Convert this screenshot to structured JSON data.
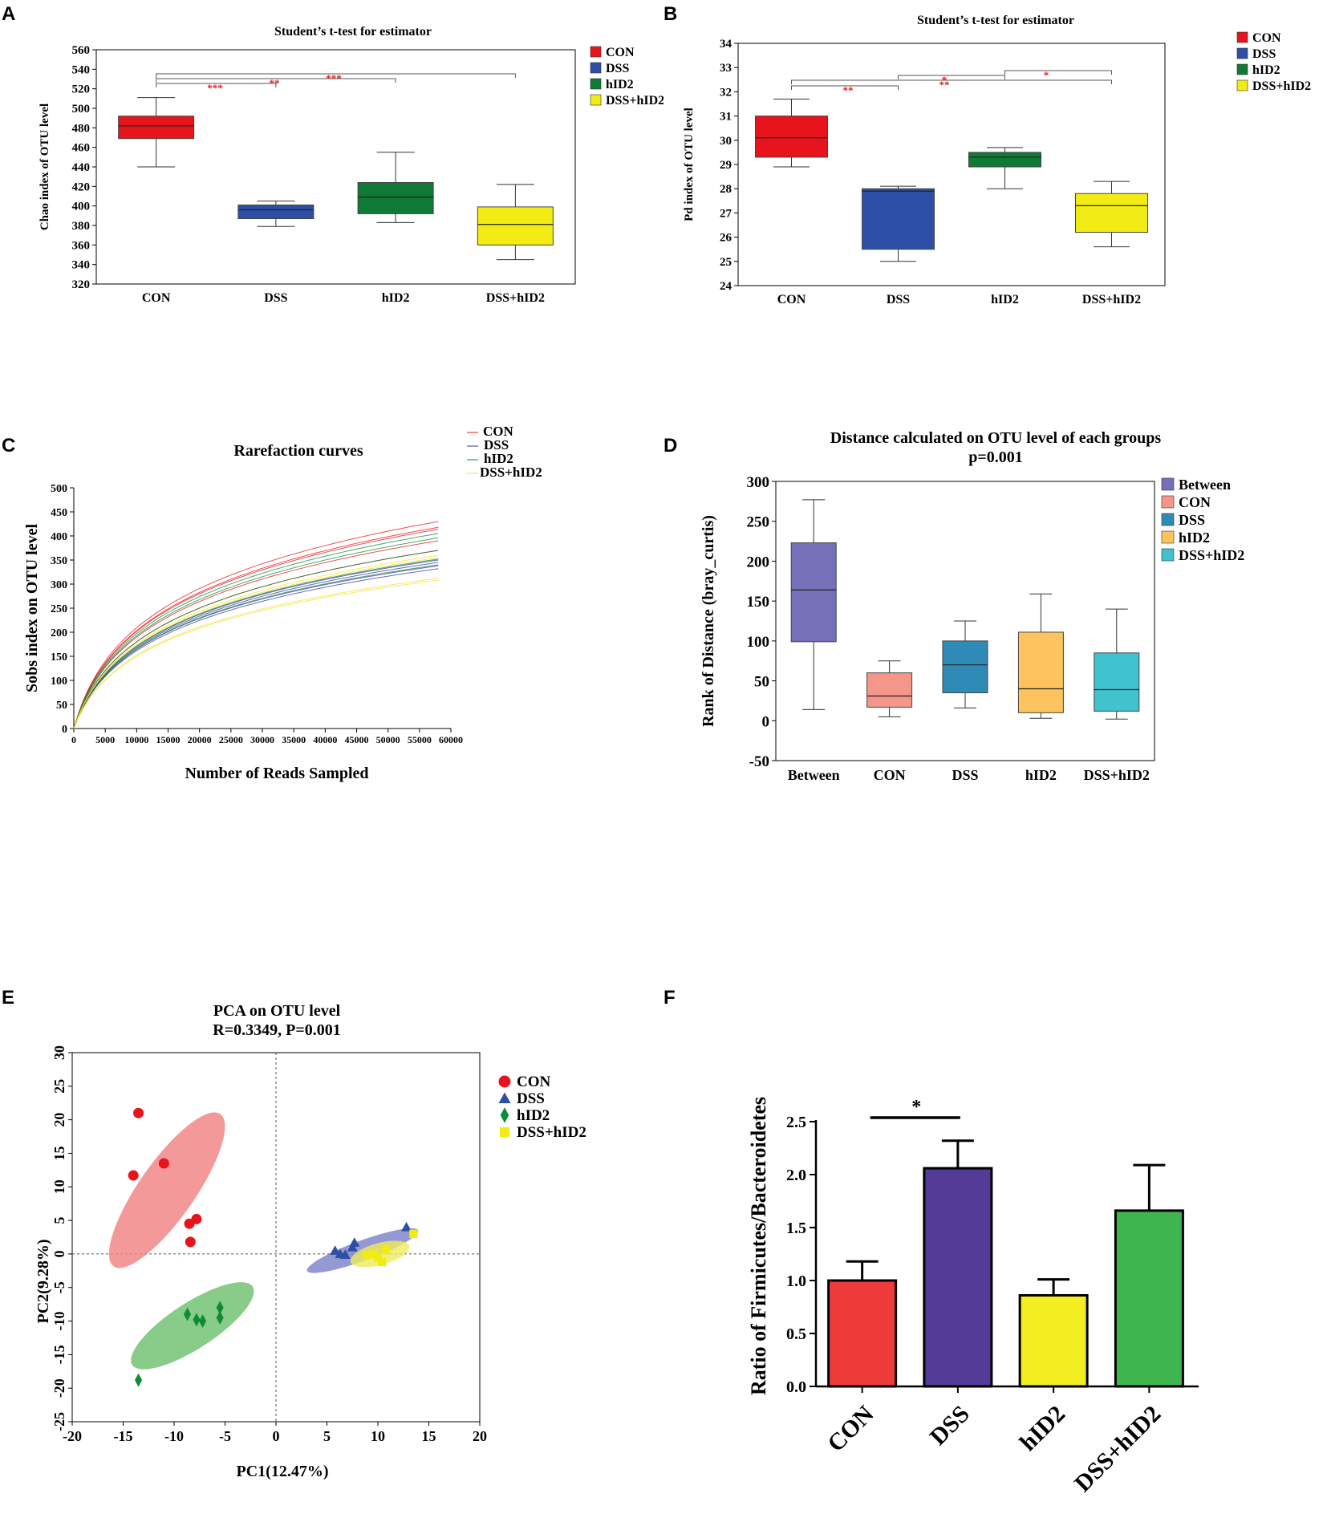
{
  "panel_labels": {
    "a": "A",
    "b": "B",
    "c": "C",
    "d": "D",
    "e": "E",
    "f": "F"
  },
  "colors": {
    "con": "#e8141c",
    "dss": "#2d4fa6",
    "hid2": "#0f7a35",
    "dsshid2": "#f2ec14",
    "sig": "#e8141c"
  },
  "chart_data": [
    {
      "id": "A",
      "type": "box",
      "title": "Student’s t-test for estimator",
      "ylabel": "Chao index of OTU level",
      "ylim": [
        320,
        560
      ],
      "yticks": [
        320,
        340,
        360,
        380,
        400,
        420,
        440,
        460,
        480,
        500,
        520,
        540,
        560
      ],
      "categories": [
        "CON",
        "DSS",
        "hID2",
        "DSS+hID2"
      ],
      "legend": [
        "CON",
        "DSS",
        "hID2",
        "DSS+hID2"
      ],
      "boxes": [
        {
          "min": 440,
          "q1": 469,
          "median": 482,
          "q3": 492,
          "max": 511,
          "color": "#e8141c"
        },
        {
          "min": 379,
          "q1": 387,
          "median": 396,
          "q3": 401,
          "max": 405,
          "color": "#2d4fa6"
        },
        {
          "min": 383,
          "q1": 392,
          "median": 409,
          "q3": 424,
          "max": 455,
          "color": "#0f7a35"
        },
        {
          "min": 345,
          "q1": 360,
          "median": 381,
          "q3": 399,
          "max": 422,
          "color": "#f2ec14"
        }
      ],
      "significance": [
        {
          "from": 0,
          "to": 1,
          "label": "***",
          "level": 0
        },
        {
          "from": 0,
          "to": 2,
          "label": "**",
          "level": 1
        },
        {
          "from": 0,
          "to": 3,
          "label": "***",
          "level": 2
        }
      ]
    },
    {
      "id": "B",
      "type": "box",
      "title": "Student’s t-test for estimator",
      "ylabel": "Pd index of OTU level",
      "ylim": [
        24,
        34
      ],
      "yticks": [
        24,
        25,
        26,
        27,
        28,
        29,
        30,
        31,
        32,
        33,
        34
      ],
      "categories": [
        "CON",
        "DSS",
        "hID2",
        "DSS+hID2"
      ],
      "legend": [
        "CON",
        "DSS",
        "hID2",
        "DSS+hID2"
      ],
      "boxes": [
        {
          "min": 28.9,
          "q1": 29.3,
          "median": 30.1,
          "q3": 31.0,
          "max": 31.7,
          "color": "#e8141c"
        },
        {
          "min": 25.0,
          "q1": 25.5,
          "median": 27.9,
          "q3": 28.0,
          "max": 28.1,
          "color": "#2d4fa6"
        },
        {
          "min": 28.0,
          "q1": 28.9,
          "median": 29.3,
          "q3": 29.5,
          "max": 29.7,
          "color": "#0f7a35"
        },
        {
          "min": 25.6,
          "q1": 26.2,
          "median": 27.3,
          "q3": 27.8,
          "max": 28.3,
          "color": "#f2ec14"
        }
      ],
      "significance": [
        {
          "from": 0,
          "to": 1,
          "label": "**",
          "level": 0
        },
        {
          "from": 0,
          "to": 3,
          "label": "**",
          "level": 1
        },
        {
          "from": 1,
          "to": 2,
          "label": "*",
          "level": 2
        },
        {
          "from": 2,
          "to": 3,
          "label": "*",
          "level": 3
        }
      ]
    },
    {
      "id": "C",
      "type": "line",
      "title": "Rarefaction curves",
      "xlabel": "Number of Reads Sampled",
      "ylabel": "Sobs index on OTU level",
      "xlim": [
        0,
        60000
      ],
      "ylim": [
        0,
        500
      ],
      "xticks": [
        0,
        5000,
        10000,
        15000,
        20000,
        25000,
        30000,
        35000,
        40000,
        45000,
        50000,
        55000,
        60000
      ],
      "yticks": [
        0,
        50,
        100,
        150,
        200,
        250,
        300,
        350,
        400,
        450,
        500
      ],
      "x_max_reads": 58000,
      "legend": [
        "CON",
        "DSS",
        "hID2",
        "DSS+hID2"
      ],
      "series": [
        {
          "name": "CON",
          "color": "#e8141c",
          "end_values": [
            430,
            418,
            414,
            390,
            370
          ]
        },
        {
          "name": "DSS",
          "color": "#3a3aa0",
          "end_values": [
            350,
            345,
            338,
            332
          ]
        },
        {
          "name": "hID2",
          "color": "#0f8a35",
          "end_values": [
            405,
            396,
            370,
            352,
            340
          ]
        },
        {
          "name": "DSS+hID2",
          "color": "#f5e03a",
          "end_values": [
            360,
            355,
            312,
            308
          ]
        }
      ]
    },
    {
      "id": "D",
      "type": "box",
      "title": "Distance calculated on OTU level of each groups",
      "subtitle": "p=0.001",
      "ylabel": "Rank of Distance (bray_curtis)",
      "ylim": [
        -50,
        300
      ],
      "yticks": [
        -50,
        0,
        50,
        100,
        150,
        200,
        250,
        300
      ],
      "categories": [
        "Between",
        "CON",
        "DSS",
        "hID2",
        "DSS+hID2"
      ],
      "legend": [
        "Between",
        "CON",
        "DSS",
        "hID2",
        "DSS+hID2"
      ],
      "boxes": [
        {
          "min": 14,
          "q1": 99,
          "median": 164,
          "q3": 223,
          "max": 277,
          "color": "#7670b8"
        },
        {
          "min": 5,
          "q1": 17,
          "median": 31,
          "q3": 60,
          "max": 75,
          "color": "#f4968a"
        },
        {
          "min": 16,
          "q1": 35,
          "median": 70,
          "q3": 100,
          "max": 125,
          "color": "#2f8ab5"
        },
        {
          "min": 3,
          "q1": 10,
          "median": 40,
          "q3": 111,
          "max": 159,
          "color": "#fdc35e"
        },
        {
          "min": 2,
          "q1": 12,
          "median": 39,
          "q3": 85,
          "max": 140,
          "color": "#40c2cf"
        }
      ]
    },
    {
      "id": "E",
      "type": "scatter",
      "title": "PCA on OTU level",
      "subtitle": "R=0.3349, P=0.001",
      "xlabel": "PC1(12.47%)",
      "ylabel": "PC2(9.28%)",
      "xlim": [
        -20,
        20
      ],
      "ylim": [
        -25,
        30
      ],
      "xticks": [
        -20,
        -15,
        -10,
        -5,
        0,
        5,
        10,
        15,
        20
      ],
      "yticks": [
        -25,
        -20,
        -15,
        -10,
        -5,
        0,
        5,
        10,
        15,
        20,
        25,
        30
      ],
      "legend": [
        "CON",
        "DSS",
        "hID2",
        "DSS+hID2"
      ],
      "series": [
        {
          "name": "CON",
          "marker": "circle",
          "color": "#e8141c",
          "ellipse_color": "#f08080",
          "points": [
            [
              -13.5,
              21
            ],
            [
              -14,
              11.7
            ],
            [
              -11,
              13.5
            ],
            [
              -8.5,
              4.5
            ],
            [
              -7.8,
              5.2
            ],
            [
              -8.4,
              1.8
            ]
          ],
          "ellipse": {
            "cx": -10.7,
            "cy": 9.5,
            "rx": 11,
            "ry": 3.3,
            "angle": 55
          }
        },
        {
          "name": "DSS",
          "marker": "triangle",
          "color": "#2d4fa6",
          "ellipse_color": "#7a80c8",
          "points": [
            [
              5.8,
              0.5
            ],
            [
              6.3,
              0
            ],
            [
              6.8,
              -0.1
            ],
            [
              7.5,
              1
            ],
            [
              7.7,
              1.7
            ],
            [
              12.8,
              4
            ]
          ],
          "ellipse": {
            "cx": 8.5,
            "cy": 0.5,
            "rx": 7,
            "ry": 1.2,
            "angle": 20
          }
        },
        {
          "name": "hID2",
          "marker": "diamond",
          "color": "#0f8a35",
          "ellipse_color": "#6cbf6c",
          "points": [
            [
              -8.7,
              -9
            ],
            [
              -7.8,
              -9.8
            ],
            [
              -7.2,
              -10
            ],
            [
              -5.5,
              -9.5
            ],
            [
              -5.5,
              -8
            ],
            [
              -13.5,
              -18.8
            ]
          ],
          "ellipse": {
            "cx": -8.2,
            "cy": -10.7,
            "rx": 8.5,
            "ry": 2.7,
            "angle": 33
          }
        },
        {
          "name": "DSS+hID2",
          "marker": "square",
          "color": "#f2ec14",
          "ellipse_color": "#eeeb5e",
          "points": [
            [
              8.9,
              -0.2
            ],
            [
              9.6,
              0
            ],
            [
              10,
              -0.5
            ],
            [
              10.4,
              -1.2
            ],
            [
              10.8,
              0.6
            ],
            [
              13.5,
              3
            ]
          ],
          "ellipse": {
            "cx": 10.2,
            "cy": 0,
            "rx": 3.6,
            "ry": 1.3,
            "angle": 15
          }
        }
      ]
    },
    {
      "id": "F",
      "type": "bar",
      "ylabel": "Ratio of Firmicutes/Bacteroidetes",
      "ylim": [
        0,
        2.5
      ],
      "yticks": [
        0.0,
        0.5,
        1.0,
        1.5,
        2.0,
        2.5
      ],
      "categories": [
        "CON",
        "DSS",
        "hID2",
        "DSS+hID2"
      ],
      "values": [
        1.0,
        2.06,
        0.86,
        1.66
      ],
      "errors": [
        0.18,
        0.26,
        0.15,
        0.43
      ],
      "colors": [
        "#ee3b39",
        "#553b98",
        "#f2ee22",
        "#3fb54f"
      ],
      "significance": [
        {
          "from": 0,
          "to": 1,
          "label": "*"
        }
      ]
    }
  ]
}
